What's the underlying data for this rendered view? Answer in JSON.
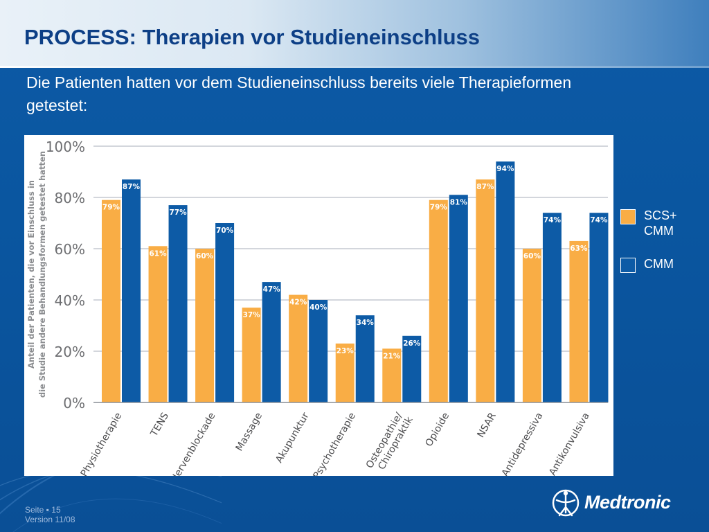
{
  "slide": {
    "title": "PROCESS: Therapien vor Studieneinschluss",
    "subtitle": "Die Patienten hatten vor dem Studieneinschluss bereits viele Therapieformen getestet:"
  },
  "footer": {
    "page_line": "Seite ▪ 15",
    "version_line": "Version 11/08"
  },
  "logo": {
    "text": "Medtronic",
    "icon": "medtronic-figure-icon"
  },
  "colors": {
    "series1": "#f9ad45",
    "series2": "#0d5ba6",
    "background": "#0a56a0",
    "title": "#0d3f86"
  },
  "chart_data": {
    "type": "bar",
    "ylabel": "Anteil der Patienten, die vor Einschluss in die Studie andere Behandlungsformen getestet hatten",
    "ylim": [
      0,
      100
    ],
    "yticks": [
      "0%",
      "20%",
      "40%",
      "60%",
      "80%",
      "100%"
    ],
    "grid": true,
    "legend": "right",
    "categories": [
      "Physiotherapie",
      "TENS",
      "Nervenblockade",
      "Massage",
      "Akupunktur",
      "Psychotherapie",
      "Osteopathie/ Chiropraktik",
      "Opioide",
      "NSAR",
      "Antidepressiva",
      "Antikonvulsiva"
    ],
    "series": [
      {
        "name": "SCS+ CMM",
        "values": [
          79,
          61,
          60,
          37,
          42,
          23,
          21,
          79,
          87,
          60,
          63
        ],
        "labels": [
          "79%",
          "61%",
          "60%",
          "37%",
          "42%",
          "23%",
          "21%",
          "79%",
          "87%",
          "60%",
          "63%"
        ]
      },
      {
        "name": "CMM",
        "values": [
          87,
          77,
          70,
          47,
          40,
          34,
          26,
          81,
          94,
          74,
          74
        ],
        "labels": [
          "87%",
          "77%",
          "70%",
          "47%",
          "40%",
          "34%",
          "26%",
          "81%",
          "94%",
          "74%",
          "74%"
        ]
      }
    ]
  }
}
